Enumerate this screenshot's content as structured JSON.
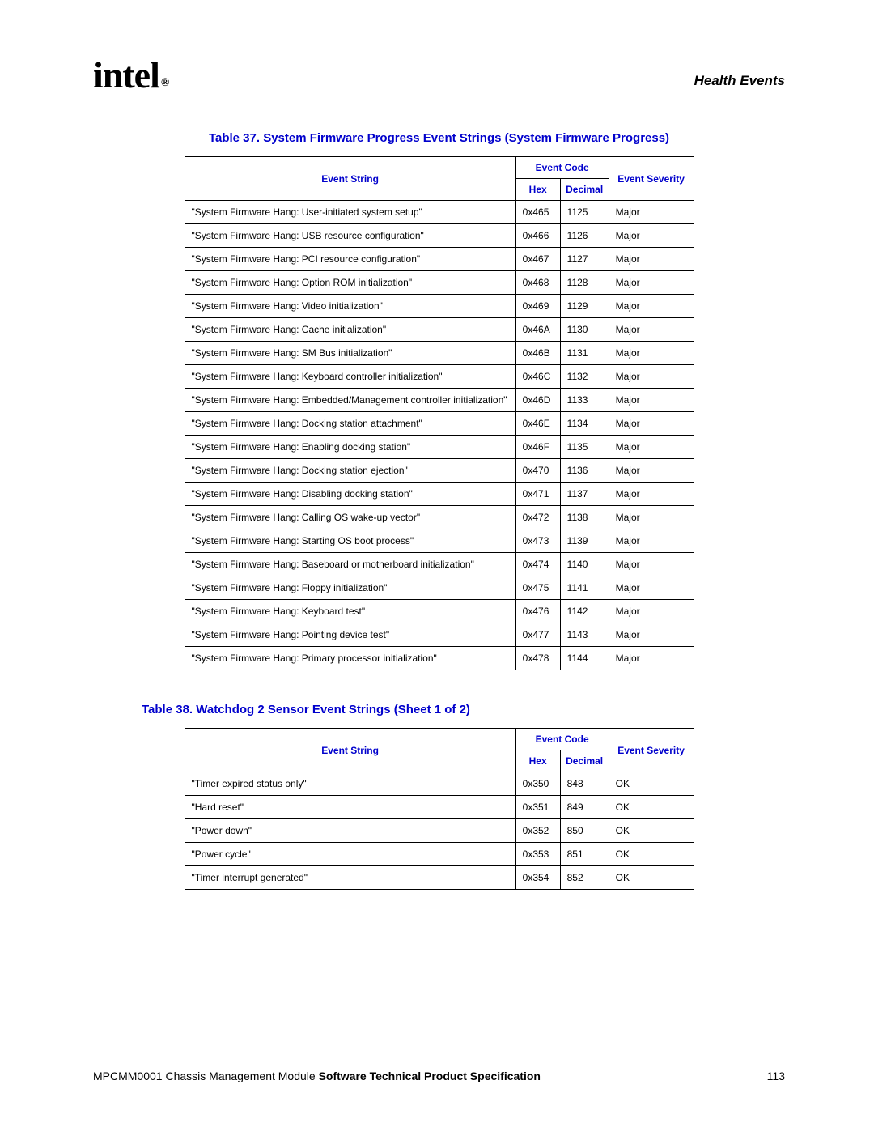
{
  "header": {
    "logo_text": "intel",
    "reg_mark": "®",
    "section": "Health Events"
  },
  "table37": {
    "caption": "Table 37. System Firmware Progress Event Strings (System Firmware Progress)",
    "columns": {
      "event_string": "Event String",
      "event_code": "Event Code",
      "hex": "Hex",
      "decimal": "Decimal",
      "event_severity": "Event Severity"
    },
    "rows": [
      {
        "s": "\"System Firmware Hang: User-initiated system setup\"",
        "h": "0x465",
        "d": "1125",
        "v": "Major"
      },
      {
        "s": "\"System Firmware Hang: USB resource configuration\"",
        "h": "0x466",
        "d": "1126",
        "v": "Major"
      },
      {
        "s": "\"System Firmware Hang: PCI resource configuration\"",
        "h": "0x467",
        "d": "1127",
        "v": "Major"
      },
      {
        "s": "\"System Firmware Hang: Option ROM initialization\"",
        "h": "0x468",
        "d": "1128",
        "v": "Major"
      },
      {
        "s": "\"System Firmware Hang: Video initialization\"",
        "h": "0x469",
        "d": "1129",
        "v": "Major"
      },
      {
        "s": "\"System Firmware Hang: Cache initialization\"",
        "h": "0x46A",
        "d": "1130",
        "v": "Major"
      },
      {
        "s": "\"System Firmware Hang: SM Bus initialization\"",
        "h": "0x46B",
        "d": "1131",
        "v": "Major"
      },
      {
        "s": "\"System Firmware Hang: Keyboard controller initialization\"",
        "h": "0x46C",
        "d": "1132",
        "v": "Major"
      },
      {
        "s": "\"System Firmware Hang: Embedded/Management controller initialization\"",
        "h": "0x46D",
        "d": "1133",
        "v": "Major"
      },
      {
        "s": "\"System Firmware Hang: Docking station attachment\"",
        "h": "0x46E",
        "d": "1134",
        "v": "Major"
      },
      {
        "s": "\"System Firmware Hang: Enabling docking station\"",
        "h": "0x46F",
        "d": "1135",
        "v": "Major"
      },
      {
        "s": "\"System Firmware Hang: Docking station ejection\"",
        "h": "0x470",
        "d": "1136",
        "v": "Major"
      },
      {
        "s": "\"System Firmware Hang: Disabling docking station\"",
        "h": "0x471",
        "d": "1137",
        "v": "Major"
      },
      {
        "s": "\"System Firmware Hang: Calling OS wake-up vector\"",
        "h": "0x472",
        "d": "1138",
        "v": "Major"
      },
      {
        "s": "\"System Firmware Hang: Starting OS boot process\"",
        "h": "0x473",
        "d": "1139",
        "v": "Major"
      },
      {
        "s": "\"System Firmware Hang: Baseboard or motherboard initialization\"",
        "h": "0x474",
        "d": "1140",
        "v": "Major"
      },
      {
        "s": "\"System Firmware Hang: Floppy initialization\"",
        "h": "0x475",
        "d": "1141",
        "v": "Major"
      },
      {
        "s": "\"System Firmware Hang: Keyboard test\"",
        "h": "0x476",
        "d": "1142",
        "v": "Major"
      },
      {
        "s": "\"System Firmware Hang: Pointing device test\"",
        "h": "0x477",
        "d": "1143",
        "v": "Major"
      },
      {
        "s": "\"System Firmware Hang: Primary processor initialization\"",
        "h": "0x478",
        "d": "1144",
        "v": "Major"
      }
    ]
  },
  "table38": {
    "caption": "Table 38.  Watchdog 2 Sensor Event Strings  (Sheet 1 of 2)",
    "columns": {
      "event_string": "Event String",
      "event_code": "Event Code",
      "hex": "Hex",
      "decimal": "Decimal",
      "event_severity": "Event Severity"
    },
    "rows": [
      {
        "s": "\"Timer expired status only\"",
        "h": "0x350",
        "d": "848",
        "v": "OK"
      },
      {
        "s": "\"Hard reset\"",
        "h": "0x351",
        "d": "849",
        "v": "OK"
      },
      {
        "s": "\"Power down\"",
        "h": "0x352",
        "d": "850",
        "v": "OK"
      },
      {
        "s": "\"Power cycle\"",
        "h": "0x353",
        "d": "851",
        "v": "OK"
      },
      {
        "s": "\"Timer interrupt generated\"",
        "h": "0x354",
        "d": "852",
        "v": "OK"
      }
    ]
  },
  "footer": {
    "doc_id": "MPCMM0001 Chassis Management Module ",
    "doc_title": "Software Technical Product Specification",
    "page_number": "113"
  }
}
